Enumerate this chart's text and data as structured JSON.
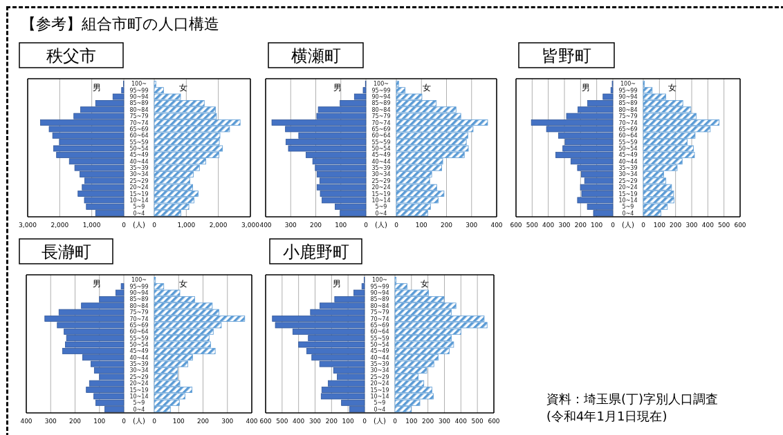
{
  "chart_data": [
    {
      "type": "bar",
      "orientation": "horizontal",
      "title": "秩父市",
      "xlabel": "(人)",
      "annotations": [
        "【参考】組合市町の人口構造"
      ],
      "grid": "x",
      "categories": [
        "100~",
        "95~99",
        "90~94",
        "85~89",
        "80~84",
        "75~79",
        "70~74",
        "65~69",
        "60~64",
        "55~59",
        "50~54",
        "45~49",
        "40~44",
        "35~39",
        "30~34",
        "25~29",
        "20~24",
        "15~19",
        "10~14",
        "5~9",
        "0~4"
      ],
      "xlim": [
        3000,
        0
      ],
      "xticks": [
        {
          "value": 3000,
          "label": "3,000"
        },
        {
          "value": 2000,
          "label": "2,000"
        },
        {
          "value": 1000,
          "label": "1,000"
        },
        0
      ],
      "series": [
        {
          "name": "男",
          "color": "#4472c4",
          "values": [
            10,
            70,
            340,
            880,
            1350,
            1560,
            2600,
            2330,
            2220,
            2010,
            2190,
            2100,
            1700,
            1530,
            1370,
            1220,
            1300,
            1430,
            1230,
            1170,
            880
          ]
        }
      ]
    },
    {
      "type": "bar",
      "orientation": "horizontal",
      "grid": "x",
      "categories": [
        null,
        null,
        null,
        null,
        null,
        null,
        null,
        null,
        null,
        null,
        null,
        null,
        null,
        null,
        null,
        null,
        null,
        null,
        null,
        null,
        null
      ],
      "xlim": [
        0,
        3000
      ],
      "xticks": [
        0,
        {
          "value": 1000,
          "label": "1,000"
        },
        {
          "value": 2000,
          "label": "2,000"
        },
        {
          "value": 3000,
          "label": "3,000"
        }
      ],
      "series": [
        {
          "name": "女",
          "color": "#5b9bd5",
          "values": [
            50,
            290,
            820,
            1560,
            1910,
            1940,
            2680,
            2350,
            2050,
            2030,
            2130,
            2020,
            1610,
            1410,
            1220,
            1110,
            1200,
            1370,
            1240,
            1080,
            830
          ]
        }
      ]
    },
    {
      "type": "bar",
      "orientation": "horizontal",
      "title": "横瀬町",
      "xlabel": "(人)",
      "grid": "x",
      "categories": [
        "100~",
        "95~99",
        "90~94",
        "85~89",
        "80~84",
        "75~79",
        "70~74",
        "65~69",
        "60~64",
        "55~59",
        "50~54",
        "45~49",
        "40~44",
        "35~39",
        "30~34",
        "25~29",
        "20~24",
        "15~19",
        "10~14",
        "5~9",
        "0~4"
      ],
      "xlim": [
        400,
        0
      ],
      "xticks": [
        400,
        300,
        200,
        100,
        0
      ],
      "series": [
        {
          "name": "男",
          "color": "#4472c4",
          "values": [
            2,
            11,
            46,
            103,
            190,
            196,
            375,
            321,
            268,
            319,
            309,
            239,
            212,
            202,
            195,
            184,
            195,
            182,
            175,
            123,
            103
          ]
        }
      ]
    },
    {
      "type": "bar",
      "orientation": "horizontal",
      "grid": "x",
      "categories": [
        null,
        null,
        null,
        null,
        null,
        null,
        null,
        null,
        null,
        null,
        null,
        null,
        null,
        null,
        null,
        null,
        null,
        null,
        null,
        null,
        null
      ],
      "xlim": [
        0,
        400
      ],
      "xticks": [
        0,
        100,
        200,
        300,
        400
      ],
      "series": [
        {
          "name": "女",
          "color": "#5b9bd5",
          "values": [
            9,
            35,
            102,
            159,
            238,
            257,
            364,
            306,
            285,
            279,
            287,
            271,
            185,
            181,
            141,
            133,
            161,
            190,
            167,
            136,
            125
          ]
        }
      ]
    },
    {
      "type": "bar",
      "orientation": "horizontal",
      "title": "皆野町",
      "xlabel": "(人)",
      "grid": "x",
      "categories": [
        "100~",
        "95~99",
        "90~94",
        "85~89",
        "80~84",
        "75~79",
        "70~74",
        "65~69",
        "60~64",
        "55~59",
        "50~54",
        "45~49",
        "40~44",
        "35~39",
        "30~34",
        "25~29",
        "20~24",
        "15~19",
        "10~14",
        "5~9",
        "0~4"
      ],
      "xlim": [
        600,
        0
      ],
      "xticks": [
        600,
        500,
        400,
        300,
        200,
        100,
        0
      ],
      "series": [
        {
          "name": "男",
          "color": "#4472c4",
          "values": [
            4,
            12,
            61,
            156,
            216,
            287,
            505,
            411,
            337,
            296,
            310,
            354,
            260,
            219,
            195,
            175,
            201,
            193,
            219,
            158,
            120
          ]
        }
      ]
    },
    {
      "type": "bar",
      "orientation": "horizontal",
      "grid": "x",
      "categories": [
        null,
        null,
        null,
        null,
        null,
        null,
        null,
        null,
        null,
        null,
        null,
        null,
        null,
        null,
        null,
        null,
        null,
        null,
        null,
        null,
        null
      ],
      "xlim": [
        0,
        600
      ],
      "xticks": [
        0,
        100,
        200,
        300,
        400,
        500,
        600
      ],
      "series": [
        {
          "name": "女",
          "color": "#5b9bd5",
          "values": [
            7,
            55,
            139,
            245,
            295,
            328,
            470,
            415,
            321,
            272,
            311,
            317,
            241,
            210,
            126,
            140,
            175,
            188,
            190,
            149,
            109
          ]
        }
      ]
    },
    {
      "type": "bar",
      "orientation": "horizontal",
      "title": "長瀞町",
      "xlabel": "(人)",
      "grid": "x",
      "categories": [
        "100~",
        "95~99",
        "90~94",
        "85~89",
        "80~84",
        "75~79",
        "70~74",
        "65~69",
        "60~64",
        "55~59",
        "50~54",
        "45~49",
        "40~44",
        "35~39",
        "30~34",
        "25~29",
        "20~24",
        "15~19",
        "10~14",
        "5~9",
        "0~4"
      ],
      "xlim": [
        400,
        0
      ],
      "xticks": [
        400,
        300,
        200,
        100,
        0
      ],
      "series": [
        {
          "name": "男",
          "color": "#4472c4",
          "values": [
            0,
            11,
            33,
            100,
            174,
            266,
            324,
            273,
            245,
            235,
            240,
            251,
            169,
            135,
            121,
            100,
            141,
            154,
            123,
            115,
            78
          ]
        }
      ]
    },
    {
      "type": "bar",
      "orientation": "horizontal",
      "grid": "x",
      "categories": [
        null,
        null,
        null,
        null,
        null,
        null,
        null,
        null,
        null,
        null,
        null,
        null,
        null,
        null,
        null,
        null,
        null,
        null,
        null,
        null,
        null
      ],
      "xlim": [
        0,
        400
      ],
      "xticks": [
        0,
        100,
        200,
        300,
        400
      ],
      "series": [
        {
          "name": "女",
          "color": "#5b9bd5",
          "values": [
            5,
            39,
            105,
            166,
            238,
            265,
            371,
            275,
            242,
            225,
            231,
            250,
            157,
            138,
            96,
            96,
            105,
            155,
            126,
            103,
            66
          ]
        }
      ]
    },
    {
      "type": "bar",
      "orientation": "horizontal",
      "title": "小鹿野町",
      "xlabel": "(人)",
      "grid": "x",
      "annotations": [
        "資料：埼玉県(丁)字別人口調査",
        "(令和4年1月1日現在)"
      ],
      "categories": [
        "100~",
        "95~99",
        "90~94",
        "85~89",
        "80~84",
        "75~79",
        "70~74",
        "65~69",
        "60~64",
        "55~59",
        "50~54",
        "45~49",
        "40~44",
        "35~39",
        "30~34",
        "25~29",
        "20~24",
        "15~19",
        "10~14",
        "5~9",
        "0~4"
      ],
      "xlim": [
        600,
        0
      ],
      "xticks": [
        600,
        500,
        400,
        300,
        200,
        100,
        0
      ],
      "series": [
        {
          "name": "男",
          "color": "#4472c4",
          "values": [
            2,
            16,
            65,
            181,
            271,
            328,
            559,
            541,
            435,
            341,
            400,
            351,
            320,
            272,
            188,
            166,
            220,
            259,
            263,
            140,
            91
          ]
        }
      ]
    },
    {
      "type": "bar",
      "orientation": "horizontal",
      "grid": "x",
      "categories": [
        null,
        null,
        null,
        null,
        null,
        null,
        null,
        null,
        null,
        null,
        null,
        null,
        null,
        null,
        null,
        null,
        null,
        null,
        null,
        null,
        null
      ],
      "xlim": [
        0,
        600
      ],
      "xticks": [
        0,
        100,
        200,
        300,
        400,
        500,
        600
      ],
      "series": [
        {
          "name": "女",
          "color": "#5b9bd5",
          "values": [
            7,
            73,
            203,
            298,
            370,
            342,
            541,
            559,
            400,
            342,
            356,
            329,
            262,
            236,
            193,
            141,
            175,
            224,
            233,
            151,
            99
          ]
        }
      ]
    }
  ]
}
